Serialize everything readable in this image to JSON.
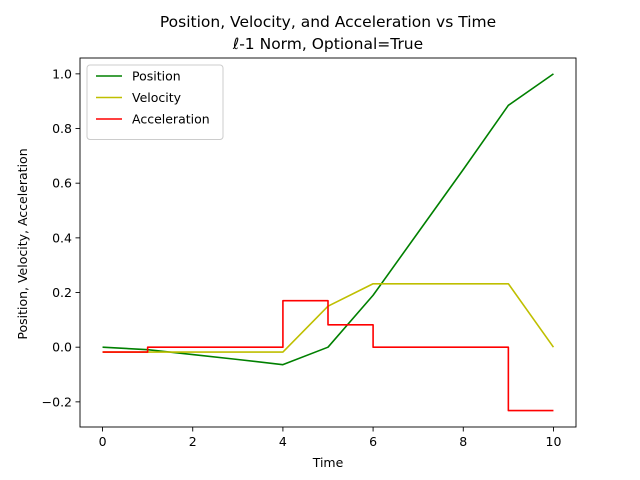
{
  "chart_data": {
    "type": "line",
    "title": "Position, Velocity, and Acceleration vs Time",
    "subtitle": "ℓ-1 Norm, Optional=True",
    "xlabel": "Time",
    "ylabel": "Position, Velocity, Acceleration",
    "xlim": [
      -0.5,
      10.5
    ],
    "ylim": [
      -0.292,
      1.058
    ],
    "xticks": [
      0,
      2,
      4,
      6,
      8,
      10
    ],
    "xtick_labels": [
      "0",
      "2",
      "4",
      "6",
      "8",
      "10"
    ],
    "yticks": [
      -0.2,
      0.0,
      0.2,
      0.4,
      0.6,
      0.8,
      1.0
    ],
    "ytick_labels": [
      "−0.2",
      "0.0",
      "0.2",
      "0.4",
      "0.6",
      "0.8",
      "1.0"
    ],
    "grid": false,
    "legend_position": "top-left",
    "series": [
      {
        "name": "Position",
        "color": "#008000",
        "drawstyle": "line",
        "x": [
          0,
          1,
          2,
          3,
          4,
          5,
          6,
          7,
          8,
          9,
          10
        ],
        "y": [
          0.0,
          -0.009,
          -0.027,
          -0.045,
          -0.064,
          0.0,
          0.19,
          0.42,
          0.65,
          0.885,
          1.0
        ]
      },
      {
        "name": "Velocity",
        "color": "#bfbf00",
        "drawstyle": "line",
        "x": [
          0,
          1,
          2,
          3,
          4,
          5,
          6,
          7,
          8,
          9,
          10
        ],
        "y": [
          -0.018,
          -0.018,
          -0.018,
          -0.018,
          -0.018,
          0.15,
          0.232,
          0.232,
          0.232,
          0.232,
          0.0
        ]
      },
      {
        "name": "Acceleration",
        "color": "#ff0000",
        "drawstyle": "steps-post",
        "x": [
          0,
          1,
          2,
          3,
          4,
          5,
          6,
          7,
          8,
          9,
          10
        ],
        "y": [
          -0.018,
          0.0,
          0.0,
          0.0,
          0.17,
          0.082,
          0.0,
          0.0,
          0.0,
          -0.232,
          -0.232
        ]
      }
    ]
  }
}
